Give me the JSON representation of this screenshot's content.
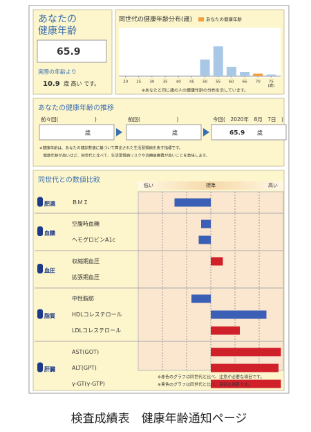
{
  "health_age": {
    "title_lines": [
      "あなたの",
      "健康年齢"
    ],
    "value": "65.9",
    "diff_prefix": "実際の年齢より",
    "diff": "10.9",
    "diff_suffix": "歳 高い です。"
  },
  "trend": {
    "title": "あなたの健康年齢の推移",
    "entries": [
      {
        "label": "前々回(　　　　　　　)",
        "unit": "歳"
      },
      {
        "label": "前回(　　　　　　　)",
        "unit": "歳"
      },
      {
        "label": "今回(　2020年　8月　7日　)",
        "value": "65.9",
        "unit": "歳"
      }
    ],
    "notes": [
      "※健康年齢は、あなたの健診数値に基づいて算出された生活習慣病を表す指標です。",
      "　健康年齢が高いほど、同世代と比べて、生活習慣病リスクや治療医療費が高いことを意味します。"
    ]
  },
  "chart_data": [
    {
      "type": "bar",
      "title": "同世代の健康年齢分布(歳)",
      "legend": "あなたの健康年齢",
      "color": "#a9c8e6",
      "highlight_color": "#f0a040",
      "highlight_index": 4,
      "x": [
        50,
        55,
        60,
        65,
        70,
        75
      ],
      "values": [
        20,
        36,
        11,
        5,
        3,
        2
      ],
      "xlim": [
        17.5,
        77.5
      ],
      "xticks": [
        20,
        25,
        30,
        35,
        40,
        45,
        50,
        55,
        60,
        65,
        70,
        75
      ],
      "x_unit": "(歳)",
      "ylim": [
        0,
        40
      ],
      "note": "※あなたと同じ歳の人の健康年齢の分布を示しています。"
    },
    {
      "type": "hbar",
      "title": "同世代との数値比較",
      "scale_labels": [
        "低い",
        "標準",
        "高い"
      ],
      "xlim": [
        -3,
        3
      ],
      "grid_x": [
        -2,
        -1,
        0,
        1,
        2
      ],
      "groups": [
        {
          "name": "肥満",
          "items": [
            {
              "name": "ＢＭＩ",
              "value": -1.5,
              "color": "#3a5fb5"
            }
          ]
        },
        {
          "name": "血糖",
          "items": [
            {
              "name": "空腹時血糖",
              "value": -0.4,
              "color": "#3a5fb5"
            },
            {
              "name": "ヘモグロビンA1c",
              "value": -0.5,
              "color": "#3a5fb5"
            }
          ]
        },
        {
          "name": "血圧",
          "items": [
            {
              "name": "収縮期血圧",
              "value": 0.5,
              "color": "#d0202a"
            },
            {
              "name": "拡張期血圧",
              "value": 0,
              "color": "#d0202a"
            }
          ]
        },
        {
          "name": "脂質",
          "items": [
            {
              "name": "中性脂肪",
              "value": -0.8,
              "color": "#3a5fb5"
            },
            {
              "name": "HDLコレステロール",
              "value": 2.3,
              "color": "#3a5fb5"
            },
            {
              "name": "LDLコレステロール",
              "value": 1.2,
              "color": "#d0202a"
            }
          ]
        },
        {
          "name": "肝臓",
          "items": [
            {
              "name": "AST(GOT)",
              "value": 2.9,
              "color": "#d0202a"
            },
            {
              "name": "ALT(GPT)",
              "value": 2.8,
              "color": "#d0202a"
            },
            {
              "name": "γ-GT(γ-GTP)",
              "value": 2.9,
              "color": "#d0202a"
            }
          ]
        }
      ],
      "notes": [
        "※赤色のグラフは同世代と比べ、注意が必要な項目です。",
        "※青色のグラフは同世代と比べ、良好な項目です。"
      ]
    }
  ],
  "caption": "検査成績表　健康年齢通知ページ"
}
